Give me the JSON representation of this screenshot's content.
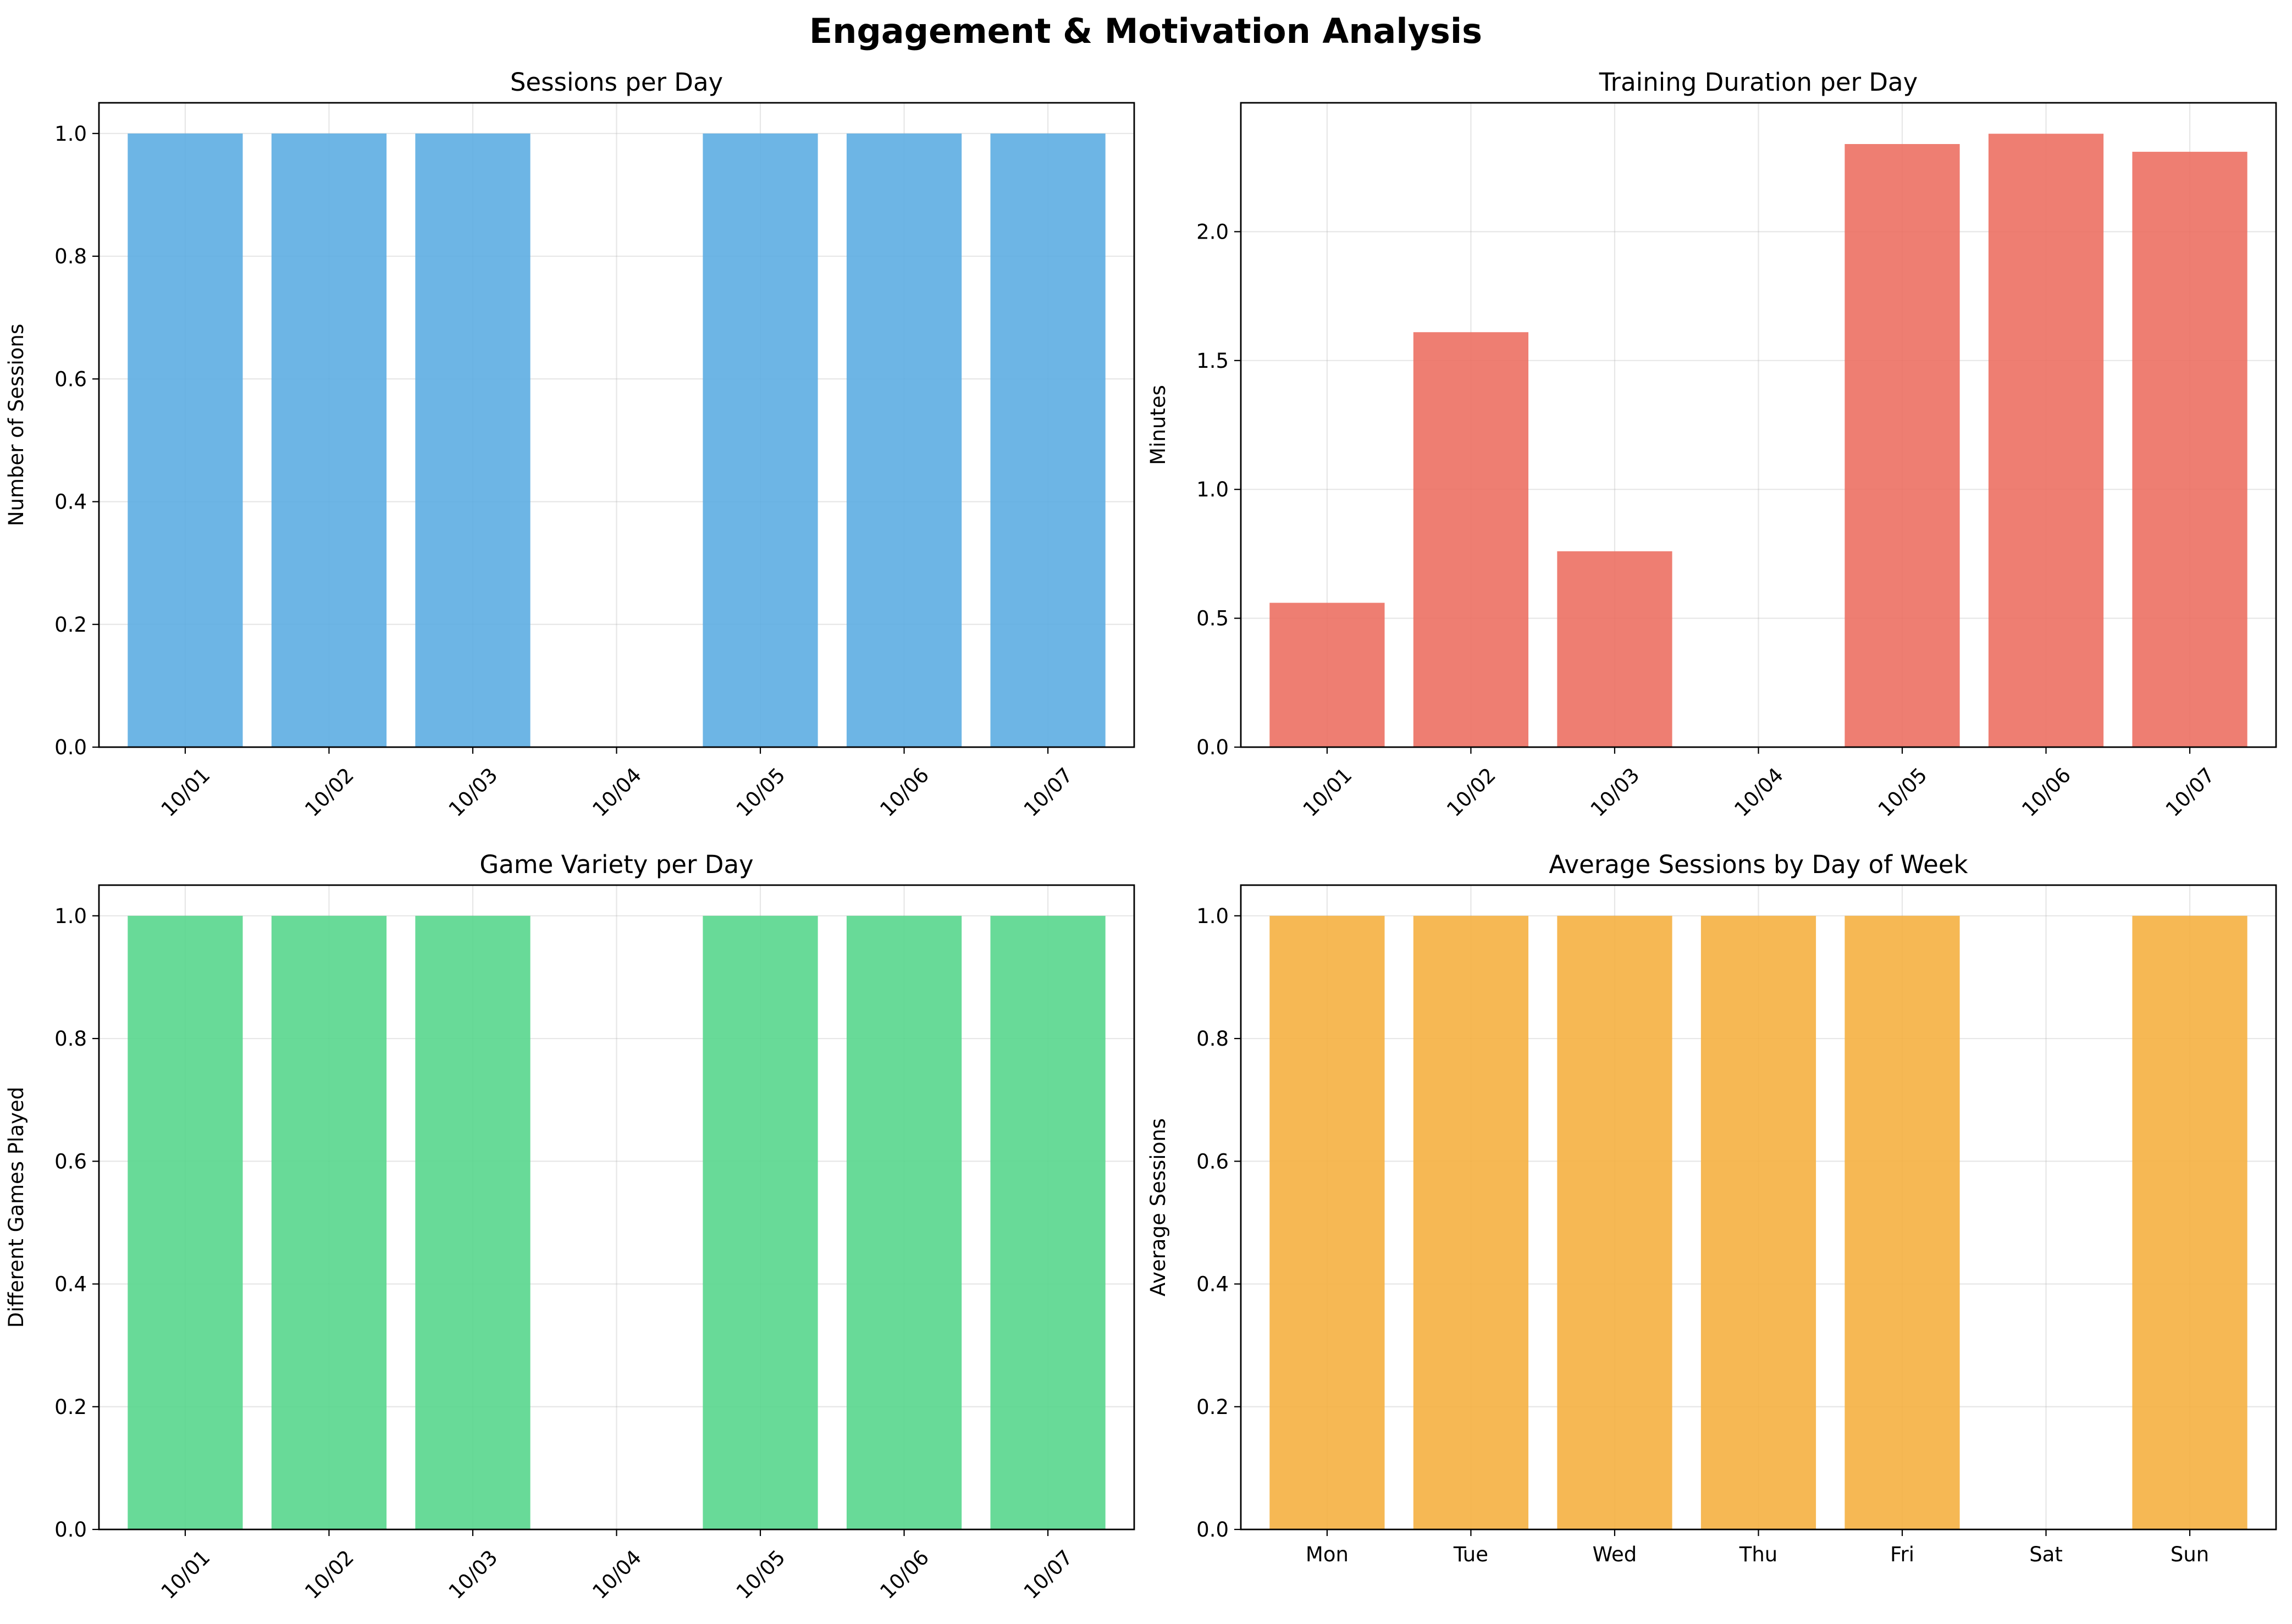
{
  "figure": {
    "suptitle": "Engagement & Motivation Analysis"
  },
  "chart_data": [
    {
      "type": "bar",
      "title": "Sessions per Day",
      "xlabel": "",
      "ylabel": "Number of Sessions",
      "categories": [
        "10/01",
        "10/02",
        "10/03",
        "10/04",
        "10/05",
        "10/06",
        "10/07"
      ],
      "values": [
        1,
        1,
        1,
        0,
        1,
        1,
        1
      ],
      "ylim": [
        0,
        1.05
      ],
      "yticks": [
        0.0,
        0.2,
        0.4,
        0.6,
        0.8,
        1.0
      ],
      "ytick_format": 1,
      "xtick_rotation": 45,
      "color": "#5DADE2",
      "grid": true,
      "legend": "none"
    },
    {
      "type": "bar",
      "title": "Training Duration per Day",
      "xlabel": "",
      "ylabel": "Minutes",
      "categories": [
        "10/01",
        "10/02",
        "10/03",
        "10/04",
        "10/05",
        "10/06",
        "10/07"
      ],
      "values": [
        0.56,
        1.61,
        0.76,
        0,
        2.34,
        2.38,
        2.31
      ],
      "ylim": [
        0,
        2.5
      ],
      "yticks": [
        0.0,
        0.5,
        1.0,
        1.5,
        2.0
      ],
      "ytick_format": 1,
      "xtick_rotation": 45,
      "color": "#EC7063",
      "grid": true,
      "legend": "none"
    },
    {
      "type": "bar",
      "title": "Game Variety per Day",
      "xlabel": "",
      "ylabel": "Different Games Played",
      "categories": [
        "10/01",
        "10/02",
        "10/03",
        "10/04",
        "10/05",
        "10/06",
        "10/07"
      ],
      "values": [
        1,
        1,
        1,
        0,
        1,
        1,
        1
      ],
      "ylim": [
        0,
        1.05
      ],
      "yticks": [
        0.0,
        0.2,
        0.4,
        0.6,
        0.8,
        1.0
      ],
      "ytick_format": 1,
      "xtick_rotation": 45,
      "color": "#58D68D",
      "grid": true,
      "legend": "none"
    },
    {
      "type": "bar",
      "title": "Average Sessions by Day of Week",
      "xlabel": "",
      "ylabel": "Average Sessions",
      "categories": [
        "Mon",
        "Tue",
        "Wed",
        "Thu",
        "Fri",
        "Sat",
        "Sun"
      ],
      "values": [
        1,
        1,
        1,
        1,
        1,
        0,
        1
      ],
      "ylim": [
        0,
        1.05
      ],
      "yticks": [
        0.0,
        0.2,
        0.4,
        0.6,
        0.8,
        1.0
      ],
      "ytick_format": 1,
      "xtick_rotation": 0,
      "color": "#F5B041",
      "grid": true,
      "legend": "none"
    }
  ]
}
